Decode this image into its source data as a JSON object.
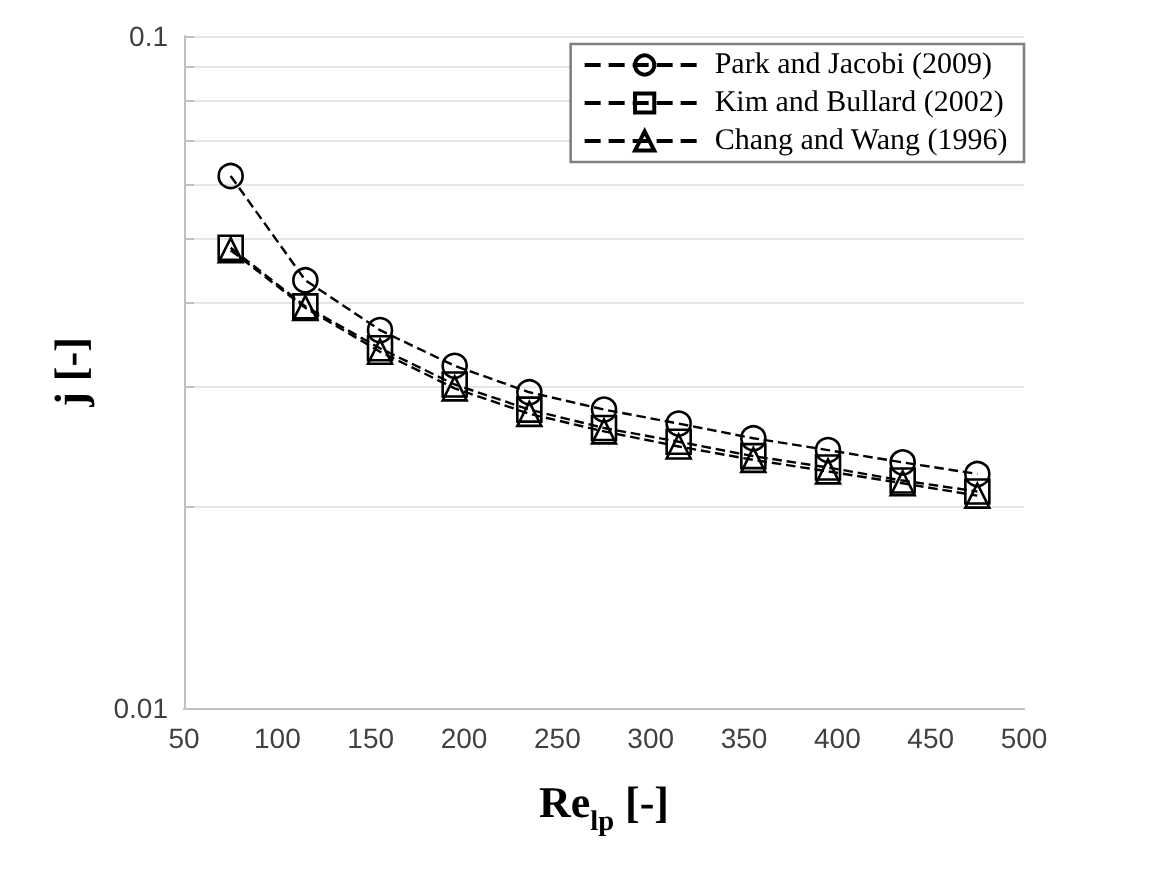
{
  "chart_data": {
    "type": "line",
    "xlabel": "Re$_{lp}$ [-]",
    "ylabel": "j [-]",
    "x": [
      75,
      115,
      155,
      195,
      235,
      275,
      315,
      355,
      395,
      435,
      475
    ],
    "series": [
      {
        "name": "Park and Jacobi (2009)",
        "color": "#000000",
        "marker": "circle",
        "values": [
          0.0619,
          0.0433,
          0.0365,
          0.0323,
          0.0295,
          0.0278,
          0.0265,
          0.0252,
          0.0242,
          0.0232,
          0.0223
        ]
      },
      {
        "name": "Kim and Bullard (2002)",
        "color": "#000000",
        "marker": "square",
        "values": [
          0.0484,
          0.0396,
          0.0343,
          0.0303,
          0.0278,
          0.0261,
          0.0249,
          0.0237,
          0.0228,
          0.0218,
          0.021
        ]
      },
      {
        "name": "Chang and Wang (1996)",
        "color": "#000000",
        "marker": "triangle",
        "values": [
          0.048,
          0.0394,
          0.0339,
          0.0299,
          0.0274,
          0.0258,
          0.0245,
          0.0234,
          0.0225,
          0.0216,
          0.0207
        ]
      }
    ],
    "xlim": [
      50,
      500
    ],
    "xticks": [
      50,
      100,
      150,
      200,
      250,
      300,
      350,
      400,
      450,
      500
    ],
    "ylim": [
      0.01,
      0.1
    ],
    "log": "y",
    "yticks": [
      0.01,
      {
        "value": 0.02,
        "label": null
      },
      {
        "value": 0.03,
        "label": null
      },
      {
        "value": 0.04,
        "label": null
      },
      {
        "value": 0.05,
        "label": null
      },
      {
        "value": 0.06,
        "label": null
      },
      {
        "value": 0.07,
        "label": null
      },
      {
        "value": 0.08,
        "label": null
      },
      {
        "value": 0.09,
        "label": null
      },
      0.1
    ],
    "grid": "y",
    "legend": "top right",
    "line_style": "dashed"
  }
}
